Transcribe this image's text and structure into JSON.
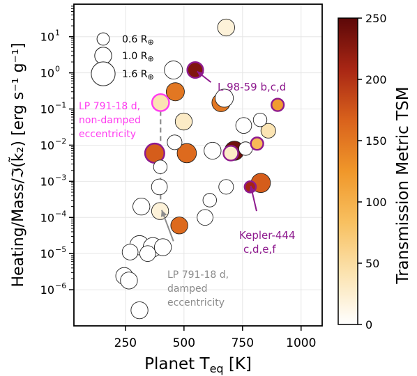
{
  "chart_data": {
    "type": "scatter",
    "xlabel": "Planet T",
    "xlabel_sub": "eq",
    "xlabel_unit": " [K]",
    "ylabel": "Heating/Mass/ℑ(k̃₂) [erg s⁻¹ g⁻¹]",
    "xlim": [
      30,
      1090
    ],
    "ylim_log10": [
      -7.0,
      1.9
    ],
    "x_scale": "linear",
    "y_scale": "log",
    "x_ticks": [
      250,
      500,
      750,
      1000
    ],
    "x_tick_labels": [
      "250",
      "500",
      "750",
      "1000"
    ],
    "y_ticks_log10": [
      -6,
      -5,
      -4,
      -3,
      -2,
      -1,
      0,
      1
    ],
    "y_tick_labels": [
      "10",
      "10",
      "10",
      "10",
      "10",
      "10",
      "10",
      "10"
    ],
    "y_tick_exponents": [
      "−6",
      "−5",
      "−4",
      "−3",
      "−2",
      "−1",
      "0",
      "1"
    ],
    "grid": true,
    "colorbar": {
      "label": "Transmission  Metric TSM",
      "range": [
        0,
        250
      ],
      "ticks": [
        0,
        50,
        100,
        150,
        200,
        250
      ],
      "tick_labels": [
        "0",
        "50",
        "100",
        "150",
        "200",
        "250"
      ],
      "colormap": [
        "#ffffff",
        "#fbe3b0",
        "#f8c060",
        "#f0972a",
        "#d9621c",
        "#a82614",
        "#5c0808"
      ]
    },
    "legend": {
      "placement": "top-left",
      "entries": [
        {
          "label": "0.6 R",
          "radius_earth": 0.6
        },
        {
          "label": "1.0 R",
          "radius_earth": 1.0
        },
        {
          "label": "1.6 R",
          "radius_earth": 1.6
        }
      ],
      "symbol": "⊕"
    },
    "points": [
      {
        "x": 680,
        "y": 18,
        "r": 1.0,
        "tsm": 20
      },
      {
        "x": 455,
        "y": 1.2,
        "r": 1.1,
        "tsm": 0
      },
      {
        "x": 548,
        "y": 1.2,
        "r": 0.9,
        "tsm": 230,
        "edge": "#8e1a8e"
      },
      {
        "x": 463,
        "y": 0.3,
        "r": 1.1,
        "tsm": 150
      },
      {
        "x": 400,
        "y": 0.15,
        "r": 1.0,
        "tsm": 40,
        "edge": "#ff3cf0"
      },
      {
        "x": 658,
        "y": 0.15,
        "r": 1.1,
        "tsm": 150
      },
      {
        "x": 672,
        "y": 0.2,
        "r": 1.1,
        "tsm": 0
      },
      {
        "x": 900,
        "y": 0.13,
        "r": 0.6,
        "tsm": 120,
        "edge": "#8e1a8e"
      },
      {
        "x": 499,
        "y": 0.045,
        "r": 1.0,
        "tsm": 30
      },
      {
        "x": 755,
        "y": 0.035,
        "r": 0.9,
        "tsm": 0
      },
      {
        "x": 860,
        "y": 0.025,
        "r": 0.8,
        "tsm": 40
      },
      {
        "x": 825,
        "y": 0.05,
        "r": 0.7,
        "tsm": 0
      },
      {
        "x": 460,
        "y": 0.012,
        "r": 0.8,
        "tsm": 0
      },
      {
        "x": 375,
        "y": 0.006,
        "r": 1.2,
        "tsm": 170,
        "edge": "#8e1a8e"
      },
      {
        "x": 512,
        "y": 0.006,
        "r": 1.2,
        "tsm": 160
      },
      {
        "x": 622,
        "y": 0.007,
        "r": 1.0,
        "tsm": 0
      },
      {
        "x": 715,
        "y": 0.007,
        "r": 1.2,
        "tsm": 240
      },
      {
        "x": 700,
        "y": 0.006,
        "r": 0.8,
        "tsm": 30,
        "edge": "#8e1a8e"
      },
      {
        "x": 763,
        "y": 0.008,
        "r": 0.7,
        "tsm": 0
      },
      {
        "x": 812,
        "y": 0.011,
        "r": 0.6,
        "tsm": 90,
        "edge": "#8e1a8e"
      },
      {
        "x": 399,
        "y": 0.0025,
        "r": 0.7,
        "tsm": 0
      },
      {
        "x": 395,
        "y": 0.0007,
        "r": 0.9,
        "tsm": 0
      },
      {
        "x": 680,
        "y": 0.0007,
        "r": 0.8,
        "tsm": 0
      },
      {
        "x": 828,
        "y": 0.0009,
        "r": 1.2,
        "tsm": 170
      },
      {
        "x": 783,
        "y": 0.0007,
        "r": 0.5,
        "tsm": 210,
        "edge": "#8e1a8e"
      },
      {
        "x": 610,
        "y": 0.0003,
        "r": 0.7,
        "tsm": 0
      },
      {
        "x": 318,
        "y": 0.0002,
        "r": 1.0,
        "tsm": 0
      },
      {
        "x": 398,
        "y": 0.00015,
        "r": 1.0,
        "tsm": 20
      },
      {
        "x": 590,
        "y": 0.0001,
        "r": 0.9,
        "tsm": 0
      },
      {
        "x": 480,
        "y": 6e-05,
        "r": 1.0,
        "tsm": 160
      },
      {
        "x": 310,
        "y": 1.7e-05,
        "r": 1.2,
        "tsm": 0
      },
      {
        "x": 367,
        "y": 1.5e-05,
        "r": 1.2,
        "tsm": 0
      },
      {
        "x": 410,
        "y": 1.5e-05,
        "r": 1.0,
        "tsm": 0
      },
      {
        "x": 270,
        "y": 1.1e-05,
        "r": 0.9,
        "tsm": 0
      },
      {
        "x": 345,
        "y": 1e-05,
        "r": 0.9,
        "tsm": 0
      },
      {
        "x": 245,
        "y": 2.4e-06,
        "r": 1.0,
        "tsm": 0
      },
      {
        "x": 265,
        "y": 1.8e-06,
        "r": 1.0,
        "tsm": 0
      },
      {
        "x": 310,
        "y": 2.7e-07,
        "r": 1.0,
        "tsm": 0
      }
    ],
    "dashed_link": {
      "x": 400,
      "y_top": 0.15,
      "y_bottom": 0.00015
    },
    "annotations": [
      {
        "lines": [
          "L 98-59 b,c,d"
        ],
        "color": "#8e1a8e",
        "arrow": {
          "from_x": 615,
          "from_y": 0.55,
          "to_x": 556,
          "to_y": 1.1
        }
      },
      {
        "lines": [
          "LP 791-18 d,",
          "non-damped",
          "eccentricity"
        ],
        "color": "#ff3cf0"
      },
      {
        "lines": [
          "Kepler-444",
          "c,d,e,f"
        ],
        "color": "#8e1a8e",
        "arrow": {
          "from_x": 810,
          "from_y": 0.00015,
          "to_x": 785,
          "to_y": 0.00075
        }
      },
      {
        "lines": [
          "LP 791-18 d,",
          "damped",
          "eccentricity"
        ],
        "color": "#8c8c8c",
        "arrow": {
          "from_x": 455,
          "from_y": 2.2e-05,
          "to_x": 405,
          "to_y": 0.00016
        }
      }
    ]
  }
}
